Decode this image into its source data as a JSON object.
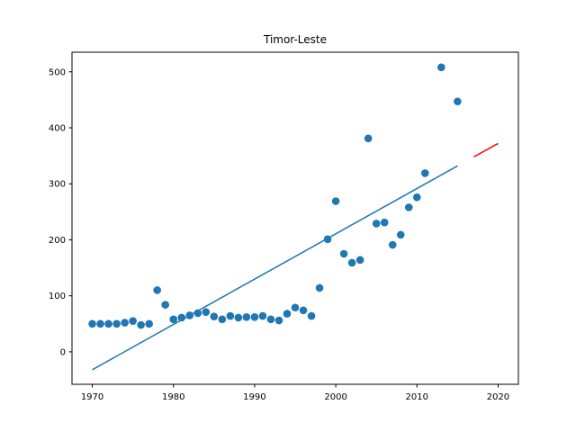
{
  "chart_data": {
    "type": "scatter",
    "title": "Timor-Leste",
    "xlabel": "",
    "ylabel": "",
    "xlim": [
      1967.5,
      2022.5
    ],
    "ylim": [
      -58,
      535
    ],
    "x_ticks": [
      1970,
      1980,
      1990,
      2000,
      2010,
      2020
    ],
    "y_ticks": [
      0,
      100,
      200,
      300,
      400,
      500
    ],
    "grid": false,
    "legend": "none",
    "series": [
      {
        "kind": "scatter",
        "color": "#1f77b4",
        "x": [
          1970,
          1971,
          1972,
          1973,
          1974,
          1975,
          1976,
          1977,
          1978,
          1979,
          1980,
          1981,
          1982,
          1983,
          1984,
          1985,
          1986,
          1987,
          1988,
          1989,
          1990,
          1991,
          1992,
          1993,
          1994,
          1995,
          1996,
          1997,
          1998,
          1999,
          2000,
          2001,
          2002,
          2003,
          2004,
          2005,
          2006,
          2007,
          2008,
          2009,
          2010,
          2011,
          2013,
          2015
        ],
        "y": [
          50,
          50,
          50,
          50,
          52,
          55,
          48,
          50,
          110,
          84,
          58,
          61,
          65,
          69,
          71,
          63,
          58,
          64,
          61,
          62,
          62,
          64,
          58,
          56,
          68,
          79,
          74,
          64,
          114,
          201,
          269,
          175,
          159,
          164,
          381,
          229,
          231,
          191,
          209,
          258,
          276,
          319,
          508,
          447
        ]
      },
      {
        "kind": "line",
        "color": "#1f77b4",
        "x": [
          1970,
          2015
        ],
        "y": [
          -32,
          332
        ]
      },
      {
        "kind": "line",
        "color": "#ff0000",
        "x": [
          2017,
          2020
        ],
        "y": [
          348,
          372
        ]
      }
    ]
  }
}
